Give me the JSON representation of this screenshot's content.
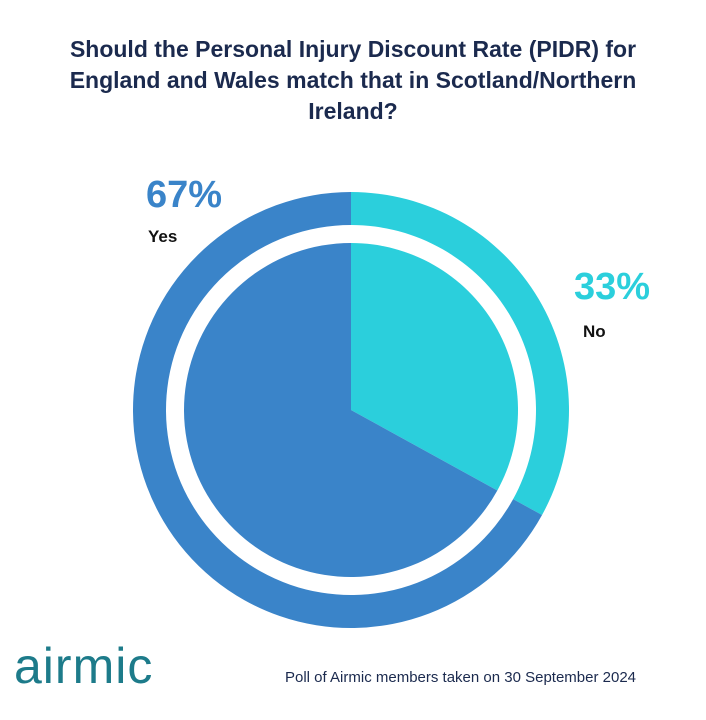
{
  "chart_data": {
    "type": "pie",
    "title": "Should the Personal Injury Discount Rate (PIDR) for England and Wales match that in Scotland/Northern Ireland?",
    "slices": [
      {
        "label": "Yes",
        "value": 67,
        "value_text": "67%",
        "color": "#3a84c9"
      },
      {
        "label": "No",
        "value": 33,
        "value_text": "33%",
        "color": "#2bcfdc"
      }
    ],
    "legend": "none"
  },
  "branding": {
    "logo_text": "airmic"
  },
  "footnote": "Poll of Airmic members taken on 30 September 2024"
}
